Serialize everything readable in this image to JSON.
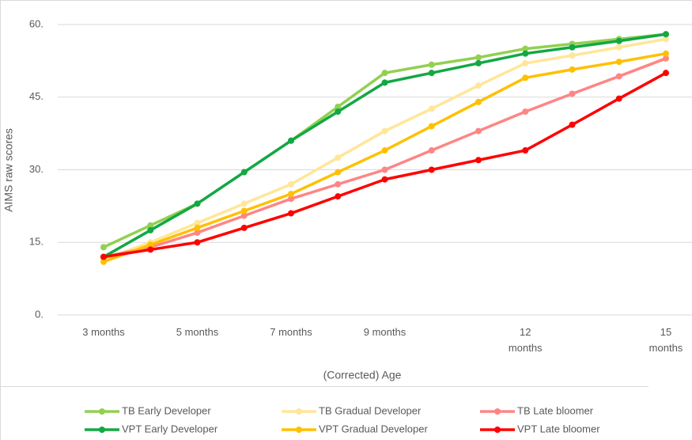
{
  "chart_data": {
    "type": "line",
    "x_label": "(Corrected) Age",
    "y_label": "AIMS raw scores",
    "categories": [
      "3 months",
      null,
      "5 months",
      null,
      "7 months",
      null,
      "9 months",
      null,
      null,
      "12 months",
      null,
      null,
      "15 months"
    ],
    "ylim": [
      0,
      60
    ],
    "yticks": [
      {
        "value": 0,
        "label": "0."
      },
      {
        "value": 15,
        "label": "15."
      },
      {
        "value": 30,
        "label": "30."
      },
      {
        "value": 45,
        "label": "45."
      },
      {
        "value": 60,
        "label": "60."
      }
    ],
    "grid": true,
    "legend": "bottom",
    "series": [
      {
        "name": "TB Early Developer",
        "color": "#92d050",
        "values": [
          14,
          18.5,
          23,
          29.5,
          36,
          43,
          50,
          51.7,
          53.2,
          55,
          56,
          57,
          58
        ]
      },
      {
        "name": "TB Gradual Developer",
        "color": "#ffe699",
        "values": [
          11.5,
          15,
          19,
          23,
          27,
          32.5,
          38,
          42.6,
          47.4,
          52,
          53.6,
          55.3,
          57
        ]
      },
      {
        "name": "TB Late bloomer",
        "color": "#ff8585",
        "values": [
          12,
          14,
          17,
          20.5,
          24,
          27,
          30,
          34,
          38,
          42,
          45.7,
          49.3,
          53
        ]
      },
      {
        "name": "VPT Early Developer",
        "color": "#12a844",
        "values": [
          12,
          17.5,
          23,
          29.5,
          36,
          42,
          48,
          50,
          52,
          54,
          55.3,
          56.6,
          58
        ]
      },
      {
        "name": "VPT Gradual Developer",
        "color": "#ffc000",
        "values": [
          11,
          14.5,
          18,
          21.5,
          25,
          29.5,
          34,
          39,
          44,
          49,
          50.7,
          52.3,
          54
        ]
      },
      {
        "name": "VPT Late bloomer",
        "color": "#ff0000",
        "values": [
          12,
          13.5,
          15,
          18,
          21,
          24.5,
          28,
          30,
          32,
          34,
          39.3,
          44.7,
          50
        ]
      }
    ]
  }
}
